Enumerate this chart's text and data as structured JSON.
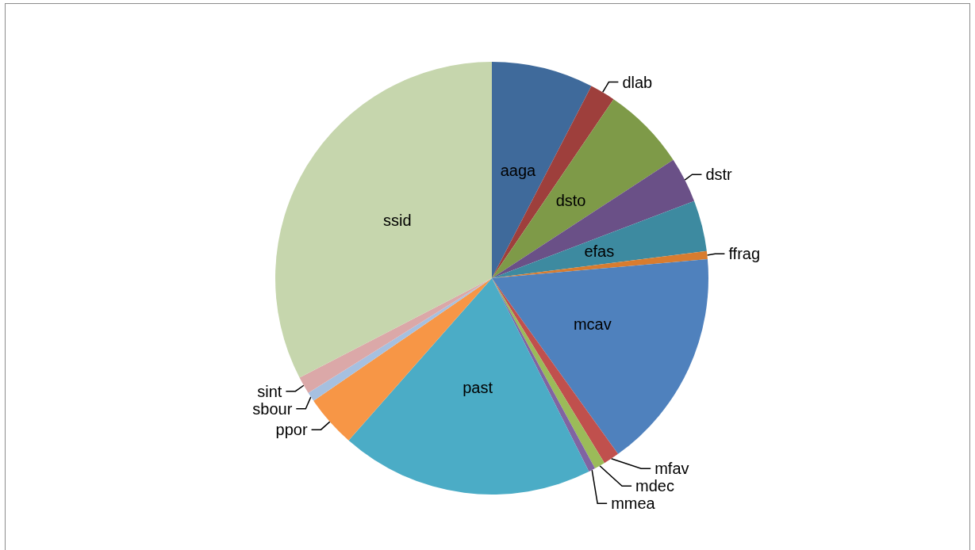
{
  "chart_data": {
    "type": "pie",
    "categories": [
      "aaga",
      "dlab",
      "dsto",
      "dstr",
      "efas",
      "ffrag",
      "mcav",
      "mfav",
      "mdec",
      "mmea",
      "past",
      "ppor",
      "sbour",
      "sint",
      "ssid"
    ],
    "values": [
      7.6,
      1.9,
      6.3,
      3.4,
      3.8,
      0.6,
      16.5,
      1.2,
      0.8,
      0.5,
      18.9,
      3.9,
      0.7,
      1.3,
      32.6
    ],
    "colors": [
      "#3f6a9b",
      "#9e3f3c",
      "#7e9a48",
      "#6a5087",
      "#3d8aa0",
      "#d87c2f",
      "#4f81bd",
      "#c0504d",
      "#9bbb59",
      "#8064a2",
      "#4bacc6",
      "#f79646",
      "#a6c0e0",
      "#dba8a8",
      "#c6d6ad"
    ]
  }
}
